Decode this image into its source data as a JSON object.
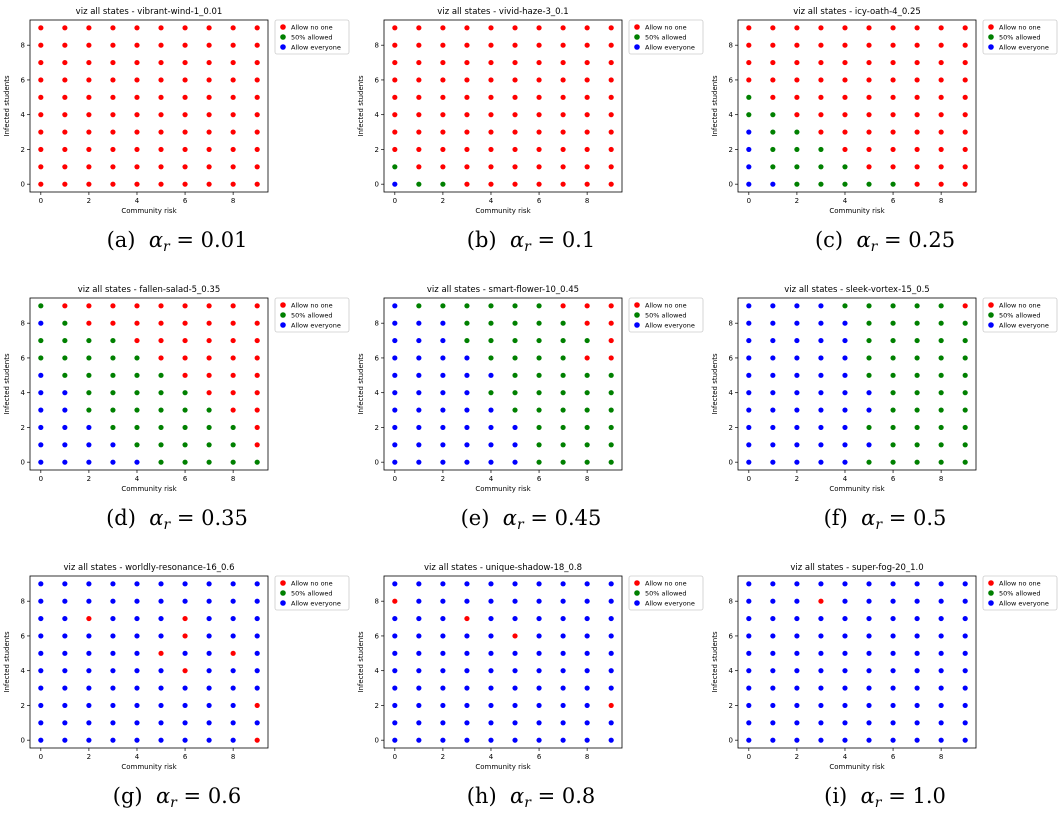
{
  "common": {
    "xlabel": "Community risk",
    "ylabel": "Infected students",
    "xticks": [
      0,
      2,
      4,
      6,
      8
    ],
    "yticks": [
      0,
      2,
      4,
      6,
      8
    ],
    "xlim": [
      -0.45,
      9.45
    ],
    "ylim": [
      -0.45,
      9.45
    ],
    "legend": [
      "Allow no one",
      "50% allowed",
      "Allow everyone"
    ],
    "colors": {
      "0": "#ff0000",
      "1": "#008000",
      "2": "#0000ff"
    }
  },
  "panels": [
    {
      "title": "viz all states - vibrant-wind-1_0.01",
      "caption_label": "(a)",
      "caption_symbol": "α",
      "caption_sub": "r",
      "caption_value": "= 0.01"
    },
    {
      "title": "viz all states - vivid-haze-3_0.1",
      "caption_label": "(b)",
      "caption_symbol": "α",
      "caption_sub": "r",
      "caption_value": "= 0.1"
    },
    {
      "title": "viz all states - icy-oath-4_0.25",
      "caption_label": "(c)",
      "caption_symbol": "α",
      "caption_sub": "r",
      "caption_value": "= 0.25"
    },
    {
      "title": "viz all states - fallen-salad-5_0.35",
      "caption_label": "(d)",
      "caption_symbol": "α",
      "caption_sub": "r",
      "caption_value": "= 0.35"
    },
    {
      "title": "viz all states - smart-flower-10_0.45",
      "caption_label": "(e)",
      "caption_symbol": "α",
      "caption_sub": "r",
      "caption_value": "= 0.45"
    },
    {
      "title": "viz all states - sleek-vortex-15_0.5",
      "caption_label": "(f)",
      "caption_symbol": "α",
      "caption_sub": "r",
      "caption_value": "= 0.5"
    },
    {
      "title": "viz all states - worldly-resonance-16_0.6",
      "caption_label": "(g)",
      "caption_symbol": "α",
      "caption_sub": "r",
      "caption_value": "= 0.6"
    },
    {
      "title": "viz all states - unique-shadow-18_0.8",
      "caption_label": "(h)",
      "caption_symbol": "α",
      "caption_sub": "r",
      "caption_value": "= 0.8"
    },
    {
      "title": "viz all states - super-fog-20_1.0",
      "caption_label": "(i)",
      "caption_symbol": "α",
      "caption_sub": "r",
      "caption_value": "= 1.0"
    }
  ],
  "chart_data": [
    {
      "type": "scatter",
      "title": "viz all states - vibrant-wind-1_0.01",
      "xlabel": "Community risk",
      "ylabel": "Infected students",
      "x": [
        0,
        1,
        2,
        3,
        4,
        5,
        6,
        7,
        8,
        9
      ],
      "y": [
        0,
        1,
        2,
        3,
        4,
        5,
        6,
        7,
        8,
        9
      ],
      "class_legend": [
        "Allow no one",
        "50% allowed",
        "Allow everyone"
      ],
      "action_grid_rows_y9_to_y0": [
        "0000000000",
        "0000000000",
        "0000000000",
        "0000000000",
        "0000000000",
        "0000000000",
        "0000000000",
        "0000000000",
        "0000000000",
        "0000000000"
      ]
    },
    {
      "type": "scatter",
      "title": "viz all states - vivid-haze-3_0.1",
      "xlabel": "Community risk",
      "ylabel": "Infected students",
      "x": [
        0,
        1,
        2,
        3,
        4,
        5,
        6,
        7,
        8,
        9
      ],
      "y": [
        0,
        1,
        2,
        3,
        4,
        5,
        6,
        7,
        8,
        9
      ],
      "class_legend": [
        "Allow no one",
        "50% allowed",
        "Allow everyone"
      ],
      "action_grid_rows_y9_to_y0": [
        "0000000000",
        "0000000000",
        "0000000000",
        "0000000000",
        "0000000000",
        "0000000000",
        "0000000000",
        "0000000000",
        "1000000000",
        "2110000000"
      ]
    },
    {
      "type": "scatter",
      "title": "viz all states - icy-oath-4_0.25",
      "xlabel": "Community risk",
      "ylabel": "Infected students",
      "x": [
        0,
        1,
        2,
        3,
        4,
        5,
        6,
        7,
        8,
        9
      ],
      "y": [
        0,
        1,
        2,
        3,
        4,
        5,
        6,
        7,
        8,
        9
      ],
      "class_legend": [
        "Allow no one",
        "50% allowed",
        "Allow everyone"
      ],
      "action_grid_rows_y9_to_y0": [
        "0000000000",
        "0000000000",
        "0000000000",
        "0000000000",
        "1000000000",
        "1100000000",
        "2110000000",
        "2111000000",
        "2111100000",
        "2211111000"
      ]
    },
    {
      "type": "scatter",
      "title": "viz all states - fallen-salad-5_0.35",
      "xlabel": "Community risk",
      "ylabel": "Infected students",
      "x": [
        0,
        1,
        2,
        3,
        4,
        5,
        6,
        7,
        8,
        9
      ],
      "y": [
        0,
        1,
        2,
        3,
        4,
        5,
        6,
        7,
        8,
        9
      ],
      "class_legend": [
        "Allow no one",
        "50% allowed",
        "Allow everyone"
      ],
      "action_grid_rows_y9_to_y0": [
        "1000000000",
        "2100000000",
        "1111000000",
        "1111100000",
        "2111110000",
        "2211111000",
        "2211111100",
        "2221111110",
        "2222111110",
        "2222211111"
      ]
    },
    {
      "type": "scatter",
      "title": "viz all states - smart-flower-10_0.45",
      "xlabel": "Community risk",
      "ylabel": "Infected students",
      "x": [
        0,
        1,
        2,
        3,
        4,
        5,
        6,
        7,
        8,
        9
      ],
      "y": [
        0,
        1,
        2,
        3,
        4,
        5,
        6,
        7,
        8,
        9
      ],
      "class_legend": [
        "Allow no one",
        "50% allowed",
        "Allow everyone"
      ],
      "action_grid_rows_y9_to_y0": [
        "2111111000",
        "2221111100",
        "2221111110",
        "2222111100",
        "2222211111",
        "2222111111",
        "2222211111",
        "2222221111",
        "2222221111",
        "2222221111"
      ]
    },
    {
      "type": "scatter",
      "title": "viz all states - sleek-vortex-15_0.5",
      "xlabel": "Community risk",
      "ylabel": "Infected students",
      "x": [
        0,
        1,
        2,
        3,
        4,
        5,
        6,
        7,
        8,
        9
      ],
      "y": [
        0,
        1,
        2,
        3,
        4,
        5,
        6,
        7,
        8,
        9
      ],
      "class_legend": [
        "Allow no one",
        "50% allowed",
        "Allow everyone"
      ],
      "action_grid_rows_y9_to_y0": [
        "2222111110",
        "2222211111",
        "2222211111",
        "2222211111",
        "2222211111",
        "2222221111",
        "2222221111",
        "2222211111",
        "2222221111",
        "2222211111"
      ]
    },
    {
      "type": "scatter",
      "title": "viz all states - worldly-resonance-16_0.6",
      "xlabel": "Community risk",
      "ylabel": "Infected students",
      "x": [
        0,
        1,
        2,
        3,
        4,
        5,
        6,
        7,
        8,
        9
      ],
      "y": [
        0,
        1,
        2,
        3,
        4,
        5,
        6,
        7,
        8,
        9
      ],
      "class_legend": [
        "Allow no one",
        "50% allowed",
        "Allow everyone"
      ],
      "action_grid_rows_y9_to_y0": [
        "2222222222",
        "2222222222",
        "2202220222",
        "2222220222",
        "2222202202",
        "2222220222",
        "2222222222",
        "2222222220",
        "2222222222",
        "2222222220"
      ]
    },
    {
      "type": "scatter",
      "title": "viz all states - unique-shadow-18_0.8",
      "xlabel": "Community risk",
      "ylabel": "Infected students",
      "x": [
        0,
        1,
        2,
        3,
        4,
        5,
        6,
        7,
        8,
        9
      ],
      "y": [
        0,
        1,
        2,
        3,
        4,
        5,
        6,
        7,
        8,
        9
      ],
      "class_legend": [
        "Allow no one",
        "50% allowed",
        "Allow everyone"
      ],
      "action_grid_rows_y9_to_y0": [
        "2222222222",
        "0222222222",
        "2220222222",
        "2222202222",
        "2222222222",
        "2222222222",
        "2222222222",
        "2222222220",
        "2222222222",
        "2222222222"
      ]
    },
    {
      "type": "scatter",
      "title": "viz all states - super-fog-20_1.0",
      "xlabel": "Community risk",
      "ylabel": "Infected students",
      "x": [
        0,
        1,
        2,
        3,
        4,
        5,
        6,
        7,
        8,
        9
      ],
      "y": [
        0,
        1,
        2,
        3,
        4,
        5,
        6,
        7,
        8,
        9
      ],
      "class_legend": [
        "Allow no one",
        "50% allowed",
        "Allow everyone"
      ],
      "action_grid_rows_y9_to_y0": [
        "2222222222",
        "2220222222",
        "2222222222",
        "2222222222",
        "2222222222",
        "2222222222",
        "2222222222",
        "2222222222",
        "2222222222",
        "2222222222"
      ]
    }
  ]
}
